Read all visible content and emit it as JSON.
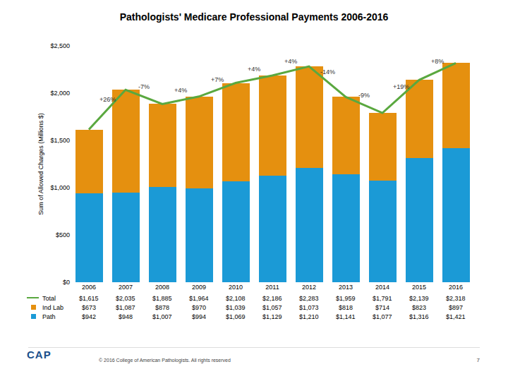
{
  "chart_data": {
    "type": "bar",
    "stacked": true,
    "title": "Pathologists' Medicare Professional Payments 2006-2016",
    "y_label": "Sum of Allowed Charges (Millions $)",
    "categories": [
      "2006",
      "2007",
      "2008",
      "2009",
      "2010",
      "2011",
      "2012",
      "2013",
      "2014",
      "2015",
      "2016"
    ],
    "series": [
      {
        "name": "Path",
        "color": "#1b9ad6",
        "values": [
          942,
          948,
          1007,
          994,
          1069,
          1129,
          1210,
          1141,
          1077,
          1316,
          1421
        ],
        "value_labels": [
          "$942",
          "$948",
          "$1,007",
          "$994",
          "$1,069",
          "$1,129",
          "$1,210",
          "$1,141",
          "$1,077",
          "$1,316",
          "$1,421"
        ]
      },
      {
        "name": "Ind Lab",
        "color": "#e5900f",
        "values": [
          673,
          1087,
          878,
          970,
          1039,
          1057,
          1073,
          818,
          714,
          823,
          897
        ],
        "value_labels": [
          "$673",
          "$1,087",
          "$878",
          "$970",
          "$1,039",
          "$1,057",
          "$1,073",
          "$818",
          "$714",
          "$823",
          "$897"
        ]
      },
      {
        "name": "Total",
        "type": "line",
        "color": "#5aa83f",
        "values": [
          1615,
          2035,
          1885,
          1964,
          2108,
          2186,
          2283,
          1959,
          1791,
          2139,
          2318
        ],
        "value_labels": [
          "$1,615",
          "$2,035",
          "$1,885",
          "$1,964",
          "$2,108",
          "$2,186",
          "$2,283",
          "$1,959",
          "$1,791",
          "$2,139",
          "$2,318"
        ]
      }
    ],
    "ylim": [
      0,
      2500
    ],
    "yticks": [
      {
        "value": 0,
        "label": "$0"
      },
      {
        "value": 500,
        "label": "$500"
      },
      {
        "value": 1000,
        "label": "$1,000"
      },
      {
        "value": 1500,
        "label": "$1,500"
      },
      {
        "value": 2000,
        "label": "$2,000"
      },
      {
        "value": 2500,
        "label": "$2,500"
      }
    ],
    "grid": false,
    "annotations": [
      {
        "text": "+26%",
        "category": "2007"
      },
      {
        "text": "-7%",
        "category": "2008"
      },
      {
        "text": "+4%",
        "category": "2009"
      },
      {
        "text": "+7%",
        "category": "2010"
      },
      {
        "text": "+4%",
        "category": "2011"
      },
      {
        "text": "+4%",
        "category": "2012"
      },
      {
        "text": "-14%",
        "category": "2013"
      },
      {
        "text": "-9%",
        "category": "2014"
      },
      {
        "text": "+19%",
        "category": "2015"
      },
      {
        "text": "+8%",
        "category": "2016"
      }
    ]
  },
  "footer": {
    "logo": "CAP",
    "copyright": "© 2016 College of American Pathologists. All rights reserved",
    "page": "7"
  }
}
